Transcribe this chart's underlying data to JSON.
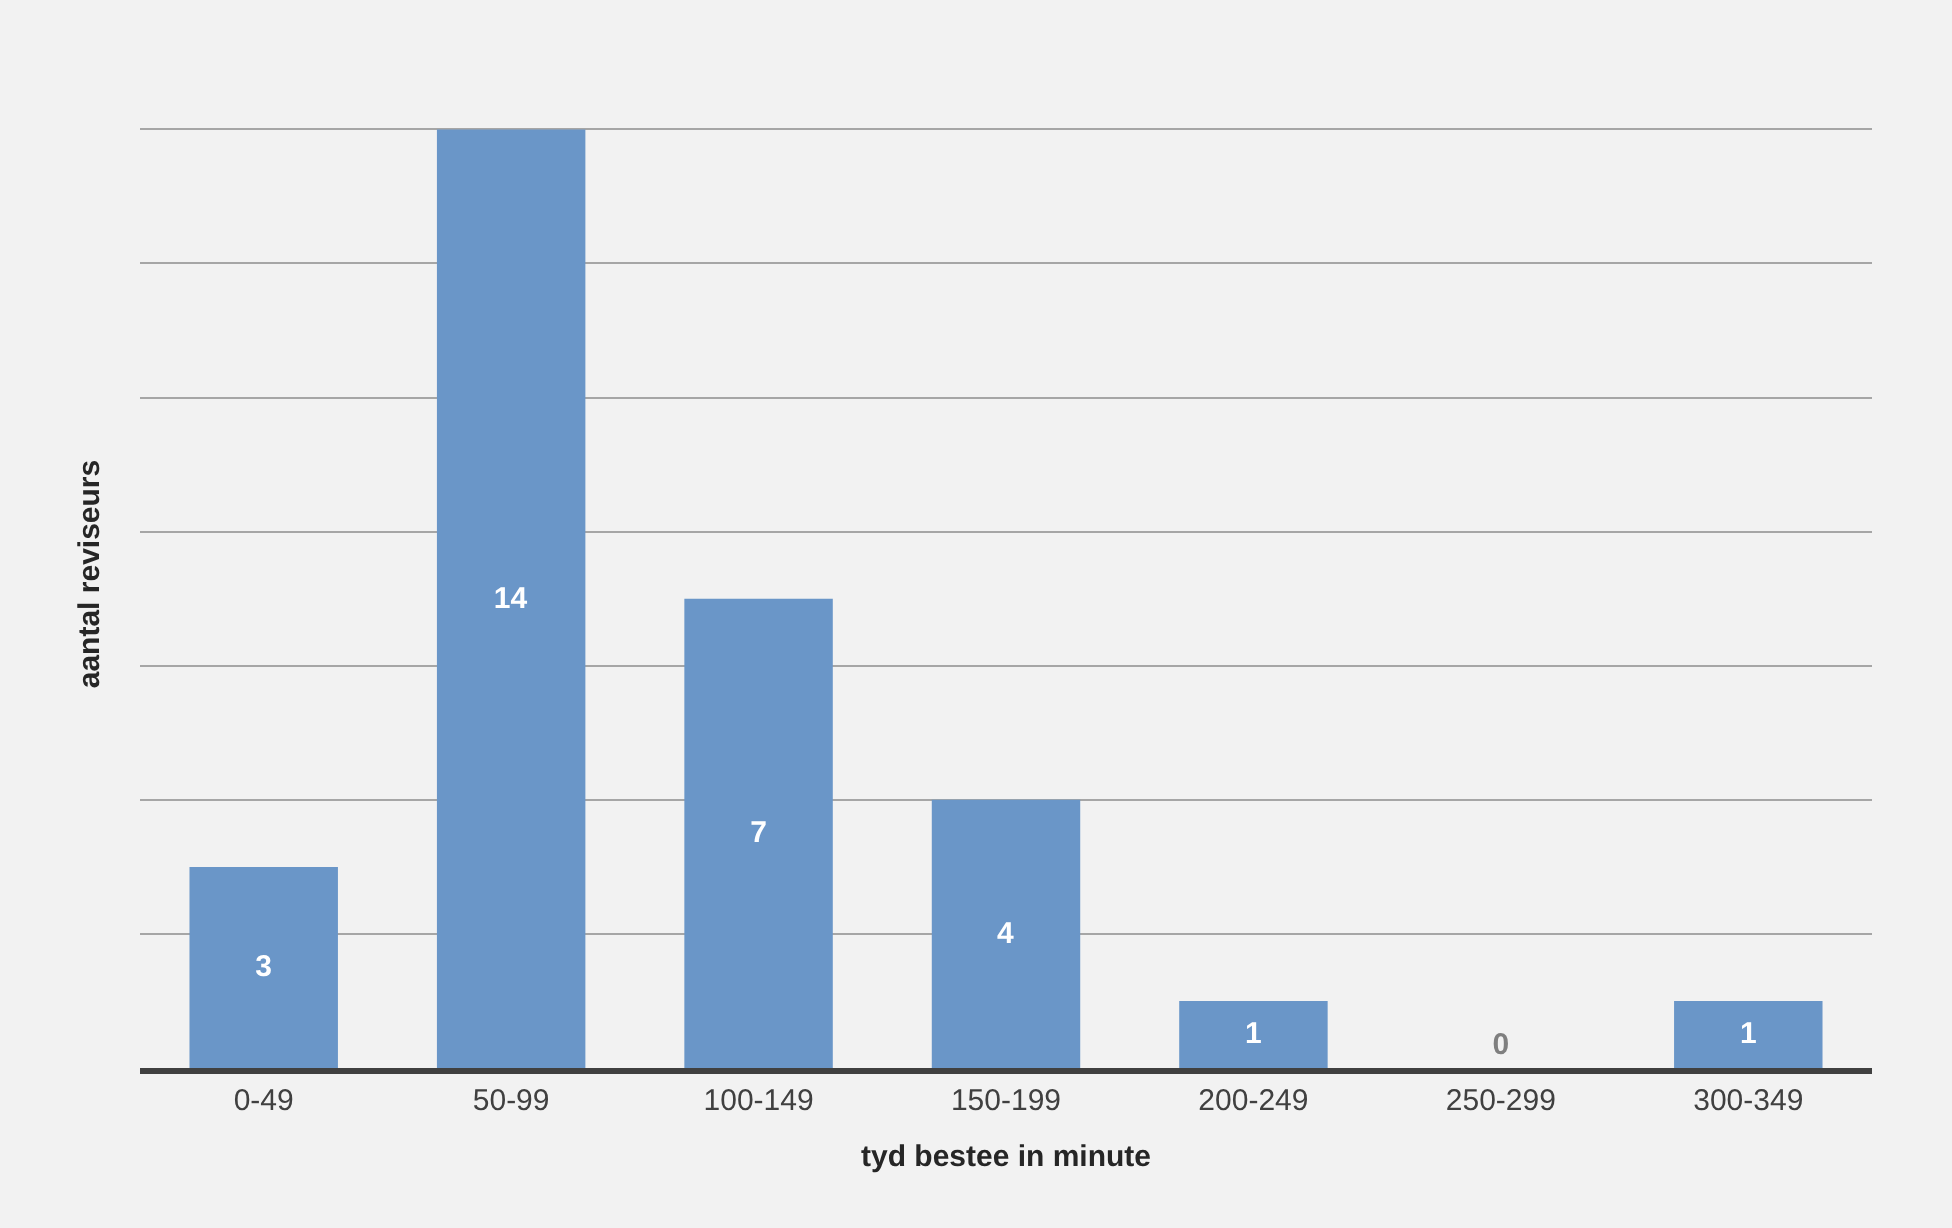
{
  "chart_data": {
    "type": "bar",
    "xlabel": "tyd bestee in minute",
    "ylabel": "aantal reviseurs",
    "categories": [
      "0-49",
      "50-99",
      "100-149",
      "150-199",
      "200-249",
      "250-299",
      "300-349"
    ],
    "values": [
      3,
      14,
      7,
      4,
      1,
      0,
      1
    ],
    "color": "#6a96c8",
    "data_labels": true,
    "grid": "y",
    "tick_labels": "x",
    "legend": false
  }
}
